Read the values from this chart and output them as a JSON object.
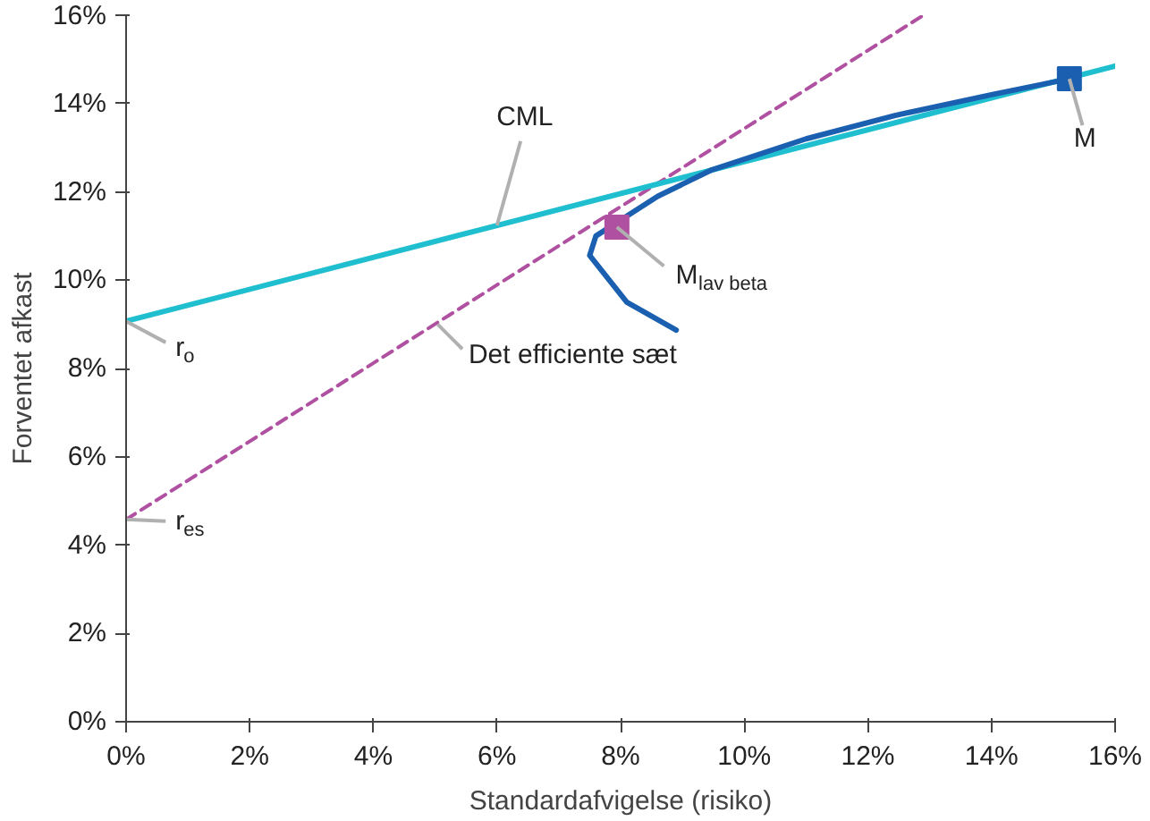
{
  "chart_data": {
    "type": "line",
    "xlabel": "Standardafvigelse (risiko)",
    "ylabel": "Forventet afkast",
    "xlim": [
      0,
      16
    ],
    "ylim": [
      0,
      16
    ],
    "xticks": [
      {
        "value": 0,
        "label": "0%"
      },
      {
        "value": 2,
        "label": "2%"
      },
      {
        "value": 4,
        "label": "4%"
      },
      {
        "value": 6,
        "label": "6%"
      },
      {
        "value": 8,
        "label": "8%"
      },
      {
        "value": 10,
        "label": "10%"
      },
      {
        "value": 12,
        "label": "12%"
      },
      {
        "value": 14,
        "label": "14%"
      },
      {
        "value": 16,
        "label": "16%"
      }
    ],
    "yticks": [
      {
        "value": 0,
        "label": "0%"
      },
      {
        "value": 2,
        "label": "2%"
      },
      {
        "value": 4,
        "label": "4%"
      },
      {
        "value": 6,
        "label": "6%"
      },
      {
        "value": 8,
        "label": "8%"
      },
      {
        "value": 10,
        "label": "10%"
      },
      {
        "value": 12,
        "label": "12%"
      },
      {
        "value": 14,
        "label": "14%"
      },
      {
        "value": 16,
        "label": "16%"
      }
    ],
    "grid": false,
    "series": [
      {
        "color": "#b050a0",
        "line_style": "dashed",
        "x": [
          0,
          12.9
        ],
        "values": [
          4.58,
          16
        ]
      },
      {
        "color": "#20bfd0",
        "line_style": "solid",
        "x": [
          0,
          16
        ],
        "values": [
          9.07,
          14.85
        ]
      },
      {
        "color": "#1a5fb0",
        "line_style": "solid",
        "x": [
          8.9,
          8.1,
          7.5,
          7.6,
          8.6,
          9.48,
          11.0,
          12.44,
          14.0,
          15.26
        ],
        "values": [
          8.87,
          9.5,
          10.56,
          11.0,
          11.9,
          12.5,
          13.2,
          13.73,
          14.2,
          14.56
        ]
      },
      {
        "type": "scatter",
        "color": "#1a5fb0",
        "marker": "square",
        "x": [
          15.26
        ],
        "values": [
          14.56
        ]
      },
      {
        "type": "scatter",
        "color": "#b050a0",
        "marker": "square",
        "x": [
          7.94
        ],
        "values": [
          11.2
        ]
      }
    ],
    "annotations": [
      {
        "text": "CML",
        "x": 6.0,
        "y": 11.24
      },
      {
        "text": "r$_{o}$",
        "x": 0,
        "y": 9.07
      },
      {
        "text": "r$_{es}$",
        "x": 0,
        "y": 4.58
      },
      {
        "text": "M$_{lav beta}$",
        "x": 7.94,
        "y": 11.2
      },
      {
        "text": "M",
        "x": 15.26,
        "y": 14.56
      },
      {
        "text": "Det efficiente sæt",
        "x": 5.04,
        "y": 9.0
      }
    ]
  }
}
